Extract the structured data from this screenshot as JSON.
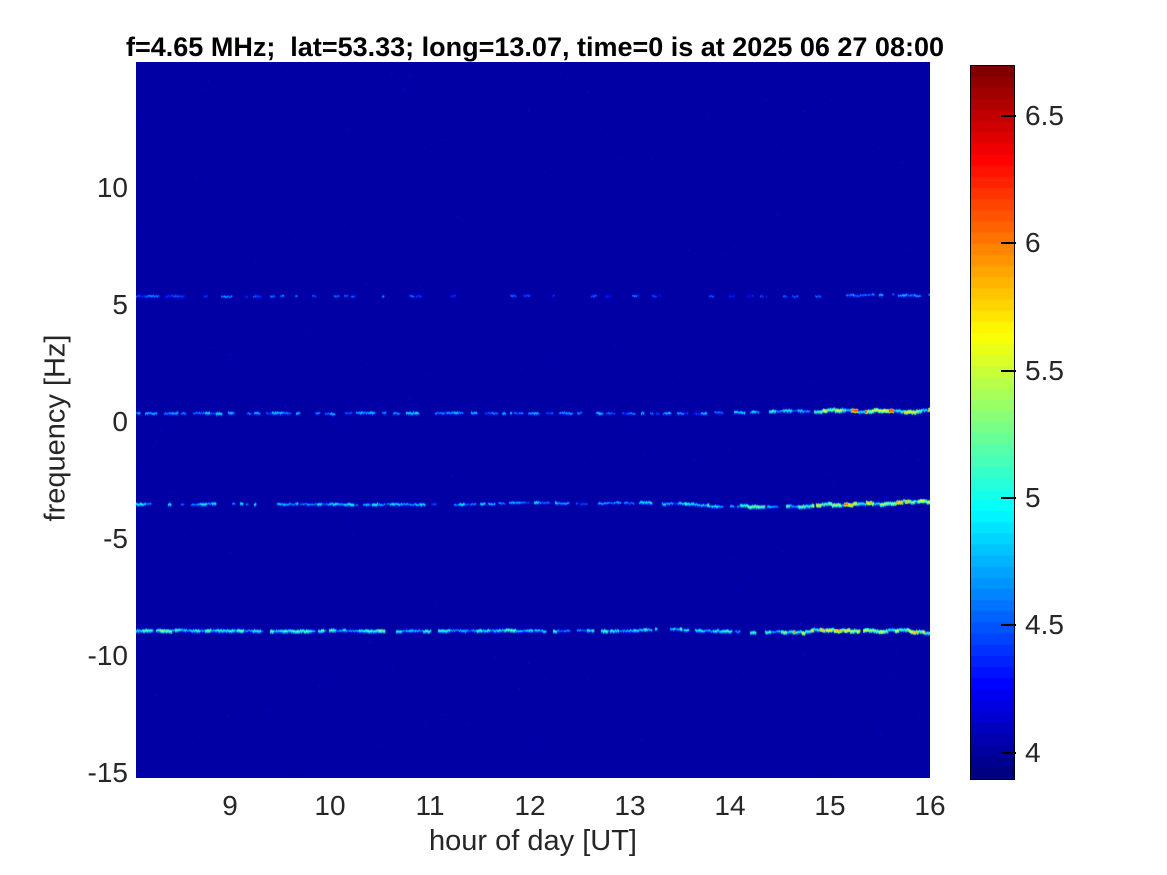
{
  "chart_data": {
    "type": "heatmap",
    "title": "f=4.65 MHz;  lat=53.33; long=13.07, time=0 is at 2025 06 27 08:00",
    "xlabel": "hour of day [UT]",
    "ylabel": "frequency [Hz]",
    "x_ticks": [
      9,
      10,
      11,
      12,
      13,
      14,
      15,
      16
    ],
    "y_ticks": [
      10,
      5,
      0,
      -5,
      -10,
      -15
    ],
    "x_range": [
      8.06,
      16.0
    ],
    "y_range": [
      -15.2,
      15.4
    ],
    "grid": false,
    "legend": "none",
    "colormap": "jet",
    "color_range": [
      3.9,
      6.7
    ],
    "colorbar_ticks": [
      6.5,
      6,
      5.5,
      5,
      4.5,
      4
    ],
    "background_value": 4.0,
    "background_color_hex": "#0a0a9e",
    "noise": {
      "density": 0.0015,
      "v_min": 4.05,
      "v_max": 4.3
    },
    "traces": [
      {
        "name": "doppler-line-+5.4Hz",
        "frequency_hz": 5.4,
        "description": "faint sparse blue dashed line",
        "segments": [
          {
            "from_hour": 8.06,
            "to_hour": 10.6,
            "density": 0.35,
            "v_min": 4.3,
            "v_max": 4.65,
            "wiggle": 1.0
          },
          {
            "from_hour": 10.6,
            "to_hour": 13.2,
            "density": 0.22,
            "v_min": 4.25,
            "v_max": 4.6,
            "wiggle": 1.0
          },
          {
            "from_hour": 13.2,
            "to_hour": 15.0,
            "density": 0.18,
            "v_min": 4.25,
            "v_max": 4.55,
            "wiggle": 1.0
          },
          {
            "from_hour": 15.0,
            "to_hour": 16.0,
            "density": 0.5,
            "v_min": 4.35,
            "v_max": 4.85,
            "wiggle": 1.5
          }
        ]
      },
      {
        "name": "doppler-line-+0.4Hz",
        "frequency_hz": 0.4,
        "description": "continuous blue/cyan line, bright wiggly green-yellow after ~14.8 UT",
        "segments": [
          {
            "from_hour": 8.06,
            "to_hour": 11.3,
            "density": 0.6,
            "v_min": 4.4,
            "v_max": 4.9,
            "wiggle": 1.0
          },
          {
            "from_hour": 11.3,
            "to_hour": 13.8,
            "density": 0.5,
            "v_min": 4.35,
            "v_max": 4.85,
            "wiggle": 1.0
          },
          {
            "from_hour": 13.8,
            "to_hour": 14.8,
            "density": 0.75,
            "v_min": 4.5,
            "v_max": 5.2,
            "wiggle": 2.0
          },
          {
            "from_hour": 14.8,
            "to_hour": 16.0,
            "density": 0.95,
            "v_min": 4.8,
            "v_max": 5.9,
            "wiggle": 3.0,
            "spike_p": 0.06,
            "spike_v": 6.2
          }
        ]
      },
      {
        "name": "doppler-line--3.5Hz",
        "frequency_hz": -3.5,
        "description": "continuous blue/cyan line, bright wiggly green-yellow after ~14.7 UT",
        "segments": [
          {
            "from_hour": 8.06,
            "to_hour": 11.5,
            "density": 0.75,
            "v_min": 4.45,
            "v_max": 5.0,
            "wiggle": 1.0
          },
          {
            "from_hour": 11.5,
            "to_hour": 13.5,
            "density": 0.65,
            "v_min": 4.4,
            "v_max": 5.0,
            "wiggle": 1.5
          },
          {
            "from_hour": 13.5,
            "to_hour": 14.7,
            "density": 0.8,
            "v_min": 4.6,
            "v_max": 5.3,
            "wiggle": 2.0
          },
          {
            "from_hour": 14.7,
            "to_hour": 16.0,
            "density": 0.95,
            "v_min": 4.8,
            "v_max": 5.9,
            "wiggle": 3.0,
            "spike_p": 0.05,
            "spike_v": 6.1
          }
        ]
      },
      {
        "name": "doppler-line--8.9Hz",
        "frequency_hz": -8.9,
        "description": "brightest continuous cyan-green line, wiggly yellow-green after ~14.6 UT",
        "segments": [
          {
            "from_hour": 8.06,
            "to_hour": 10.5,
            "density": 0.9,
            "v_min": 4.6,
            "v_max": 5.3,
            "wiggle": 1.0
          },
          {
            "from_hour": 10.5,
            "to_hour": 13.0,
            "density": 0.8,
            "v_min": 4.5,
            "v_max": 5.2,
            "wiggle": 1.2
          },
          {
            "from_hour": 13.0,
            "to_hour": 14.6,
            "density": 0.75,
            "v_min": 4.55,
            "v_max": 5.3,
            "wiggle": 1.5
          },
          {
            "from_hour": 14.6,
            "to_hour": 16.0,
            "density": 0.95,
            "v_min": 4.9,
            "v_max": 5.9,
            "wiggle": 3.0,
            "spike_p": 0.04,
            "spike_v": 6.0
          }
        ]
      }
    ],
    "colors": {
      "tick_label": "#262626",
      "title": "#000000",
      "colorbar_outline": "#000000"
    }
  }
}
